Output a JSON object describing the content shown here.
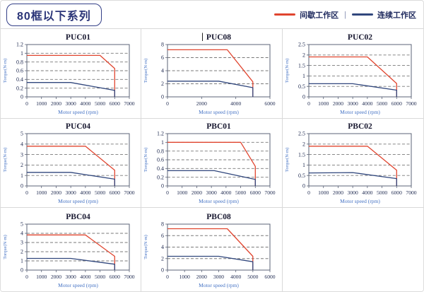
{
  "header": {
    "title": "80框以下系列",
    "legend": [
      {
        "label": "间歇工作区",
        "color": "#e0452f"
      },
      {
        "label": "连续工作区",
        "color": "#31477d"
      }
    ],
    "legend_divider": "|"
  },
  "colors": {
    "intermittent": "#e0452f",
    "continuous": "#31477d",
    "grid_line": "#787878",
    "plot_frame": "#5b6377",
    "tick_text": "#1f2a50",
    "axis_label_text": "#4472c4",
    "chart_title_text": "#181830",
    "cell_border": "#d9d9d9"
  },
  "chart_data": [
    {
      "type": "line",
      "title": "PUC01",
      "cursor_before_title": false,
      "ylabel": "Torque(N·m)",
      "xlabel": "Motor speed (rpm)",
      "ylim": [
        0,
        1.2
      ],
      "yticks": [
        0,
        0.2,
        0.4,
        0.6,
        0.8,
        1,
        1.2
      ],
      "xlim": [
        0,
        7000
      ],
      "xticks": [
        0,
        1000,
        2000,
        3000,
        4000,
        5000,
        6000,
        7000
      ],
      "series": [
        {
          "name": "间歇工作区",
          "color_key": "intermittent",
          "points": [
            [
              0,
              0.95
            ],
            [
              5000,
              0.95
            ],
            [
              6000,
              0.65
            ],
            [
              6000,
              0
            ]
          ]
        },
        {
          "name": "连续工作区",
          "color_key": "continuous",
          "points": [
            [
              0,
              0.33
            ],
            [
              3000,
              0.33
            ],
            [
              6000,
              0.15
            ],
            [
              6000,
              0
            ]
          ]
        }
      ]
    },
    {
      "type": "line",
      "title": "PUC08",
      "cursor_before_title": true,
      "ylabel": "Torque(N·m)",
      "xlabel": "Motor speed (rpm)",
      "ylim": [
        0,
        8
      ],
      "yticks": [
        0,
        2,
        4,
        6,
        8
      ],
      "xlim": [
        0,
        6000
      ],
      "xticks": [
        0,
        2000,
        4000,
        6000
      ],
      "series": [
        {
          "name": "间歇工作区",
          "color_key": "intermittent",
          "points": [
            [
              0,
              7.2
            ],
            [
              3500,
              7.2
            ],
            [
              5000,
              2.3
            ],
            [
              5000,
              0
            ]
          ]
        },
        {
          "name": "连续工作区",
          "color_key": "continuous",
          "points": [
            [
              0,
              2.4
            ],
            [
              3000,
              2.4
            ],
            [
              5000,
              1.4
            ],
            [
              5000,
              0
            ]
          ]
        }
      ]
    },
    {
      "type": "line",
      "title": "PUC02",
      "cursor_before_title": false,
      "ylabel": "Torque(N·m)",
      "xlabel": "Motor speed (rpm)",
      "ylim": [
        0,
        2.5
      ],
      "yticks": [
        0,
        0.5,
        1,
        1.5,
        2,
        2.5
      ],
      "xlim": [
        0,
        7000
      ],
      "xticks": [
        0,
        1000,
        2000,
        3000,
        4000,
        5000,
        6000,
        7000
      ],
      "series": [
        {
          "name": "间歇工作区",
          "color_key": "intermittent",
          "points": [
            [
              0,
              1.91
            ],
            [
              4000,
              1.91
            ],
            [
              6000,
              0.64
            ],
            [
              6000,
              0
            ]
          ]
        },
        {
          "name": "连续工作区",
          "color_key": "continuous",
          "points": [
            [
              0,
              0.63
            ],
            [
              3000,
              0.63
            ],
            [
              6000,
              0.32
            ],
            [
              6000,
              0
            ]
          ]
        }
      ]
    },
    {
      "type": "line",
      "title": "PUC04",
      "cursor_before_title": false,
      "ylabel": "Torque(N·m)",
      "xlabel": "Motor speed (rpm)",
      "ylim": [
        0,
        5
      ],
      "yticks": [
        0,
        1,
        2,
        3,
        4,
        5
      ],
      "xlim": [
        0,
        7000
      ],
      "xticks": [
        0,
        1000,
        2000,
        3000,
        4000,
        5000,
        6000,
        7000
      ],
      "series": [
        {
          "name": "间歇工作区",
          "color_key": "intermittent",
          "points": [
            [
              0,
              3.8
            ],
            [
              4000,
              3.8
            ],
            [
              6000,
              1.5
            ],
            [
              6000,
              0
            ]
          ]
        },
        {
          "name": "连续工作区",
          "color_key": "continuous",
          "points": [
            [
              0,
              1.3
            ],
            [
              3000,
              1.3
            ],
            [
              6000,
              0.65
            ],
            [
              6000,
              0
            ]
          ]
        }
      ]
    },
    {
      "type": "line",
      "title": "PBC01",
      "cursor_before_title": false,
      "ylabel": "Torque(N·m)",
      "xlabel": "Motor speed (rpm)",
      "ylim": [
        0,
        1.2
      ],
      "yticks": [
        0,
        0.2,
        0.4,
        0.6,
        0.8,
        1,
        1.2
      ],
      "xlim": [
        0,
        7000
      ],
      "xticks": [
        0,
        1000,
        2000,
        3000,
        4000,
        5000,
        6000,
        7000
      ],
      "series": [
        {
          "name": "间歇工作区",
          "color_key": "intermittent",
          "points": [
            [
              0,
              1.0
            ],
            [
              5000,
              1.0
            ],
            [
              6000,
              0.45
            ],
            [
              6000,
              0
            ]
          ]
        },
        {
          "name": "连续工作区",
          "color_key": "continuous",
          "points": [
            [
              0,
              0.35
            ],
            [
              3200,
              0.35
            ],
            [
              6000,
              0.15
            ],
            [
              6000,
              0
            ]
          ]
        }
      ]
    },
    {
      "type": "line",
      "title": "PBC02",
      "cursor_before_title": false,
      "ylabel": "Torque(N·m)",
      "xlabel": "Motor speed (rpm)",
      "ylim": [
        0,
        2.5
      ],
      "yticks": [
        0,
        0.5,
        1,
        1.5,
        2,
        2.5
      ],
      "xlim": [
        0,
        7000
      ],
      "xticks": [
        0,
        1000,
        2000,
        3000,
        4000,
        5000,
        6000,
        7000
      ],
      "series": [
        {
          "name": "间歇工作区",
          "color_key": "intermittent",
          "points": [
            [
              0,
              1.9
            ],
            [
              4000,
              1.9
            ],
            [
              6000,
              0.75
            ],
            [
              6000,
              0
            ]
          ]
        },
        {
          "name": "连续工作区",
          "color_key": "continuous",
          "points": [
            [
              0,
              0.62
            ],
            [
              3000,
              0.64
            ],
            [
              6000,
              0.35
            ],
            [
              6000,
              0
            ]
          ]
        }
      ]
    },
    {
      "type": "line",
      "title": "PBC04",
      "cursor_before_title": false,
      "ylabel": "Torque(N·m)",
      "xlabel": "Motor speed (rpm)",
      "ylim": [
        0,
        5
      ],
      "yticks": [
        0,
        1,
        2,
        3,
        4,
        5
      ],
      "xlim": [
        0,
        7000
      ],
      "xticks": [
        0,
        1000,
        2000,
        3000,
        4000,
        5000,
        6000,
        7000
      ],
      "series": [
        {
          "name": "间歇工作区",
          "color_key": "intermittent",
          "points": [
            [
              0,
              3.82
            ],
            [
              4000,
              3.82
            ],
            [
              6000,
              1.5
            ],
            [
              6000,
              0
            ]
          ]
        },
        {
          "name": "连续工作区",
          "color_key": "continuous",
          "points": [
            [
              0,
              1.27
            ],
            [
              3000,
              1.27
            ],
            [
              6000,
              0.64
            ],
            [
              6000,
              0
            ]
          ]
        }
      ]
    },
    {
      "type": "line",
      "title": "PBC08",
      "cursor_before_title": false,
      "ylabel": "Torque(N·m)",
      "xlabel": "Motor speed (rpm)",
      "ylim": [
        0,
        8
      ],
      "yticks": [
        0,
        2,
        4,
        6,
        8
      ],
      "xlim": [
        0,
        6000
      ],
      "xticks": [
        0,
        1000,
        2000,
        3000,
        4000,
        5000,
        6000
      ],
      "series": [
        {
          "name": "间歇工作区",
          "color_key": "intermittent",
          "points": [
            [
              0,
              7.2
            ],
            [
              3500,
              7.2
            ],
            [
              5000,
              2.4
            ],
            [
              5000,
              0
            ]
          ]
        },
        {
          "name": "连续工作区",
          "color_key": "continuous",
          "points": [
            [
              0,
              2.4
            ],
            [
              3000,
              2.4
            ],
            [
              5000,
              1.45
            ],
            [
              5000,
              0
            ]
          ]
        }
      ]
    }
  ]
}
